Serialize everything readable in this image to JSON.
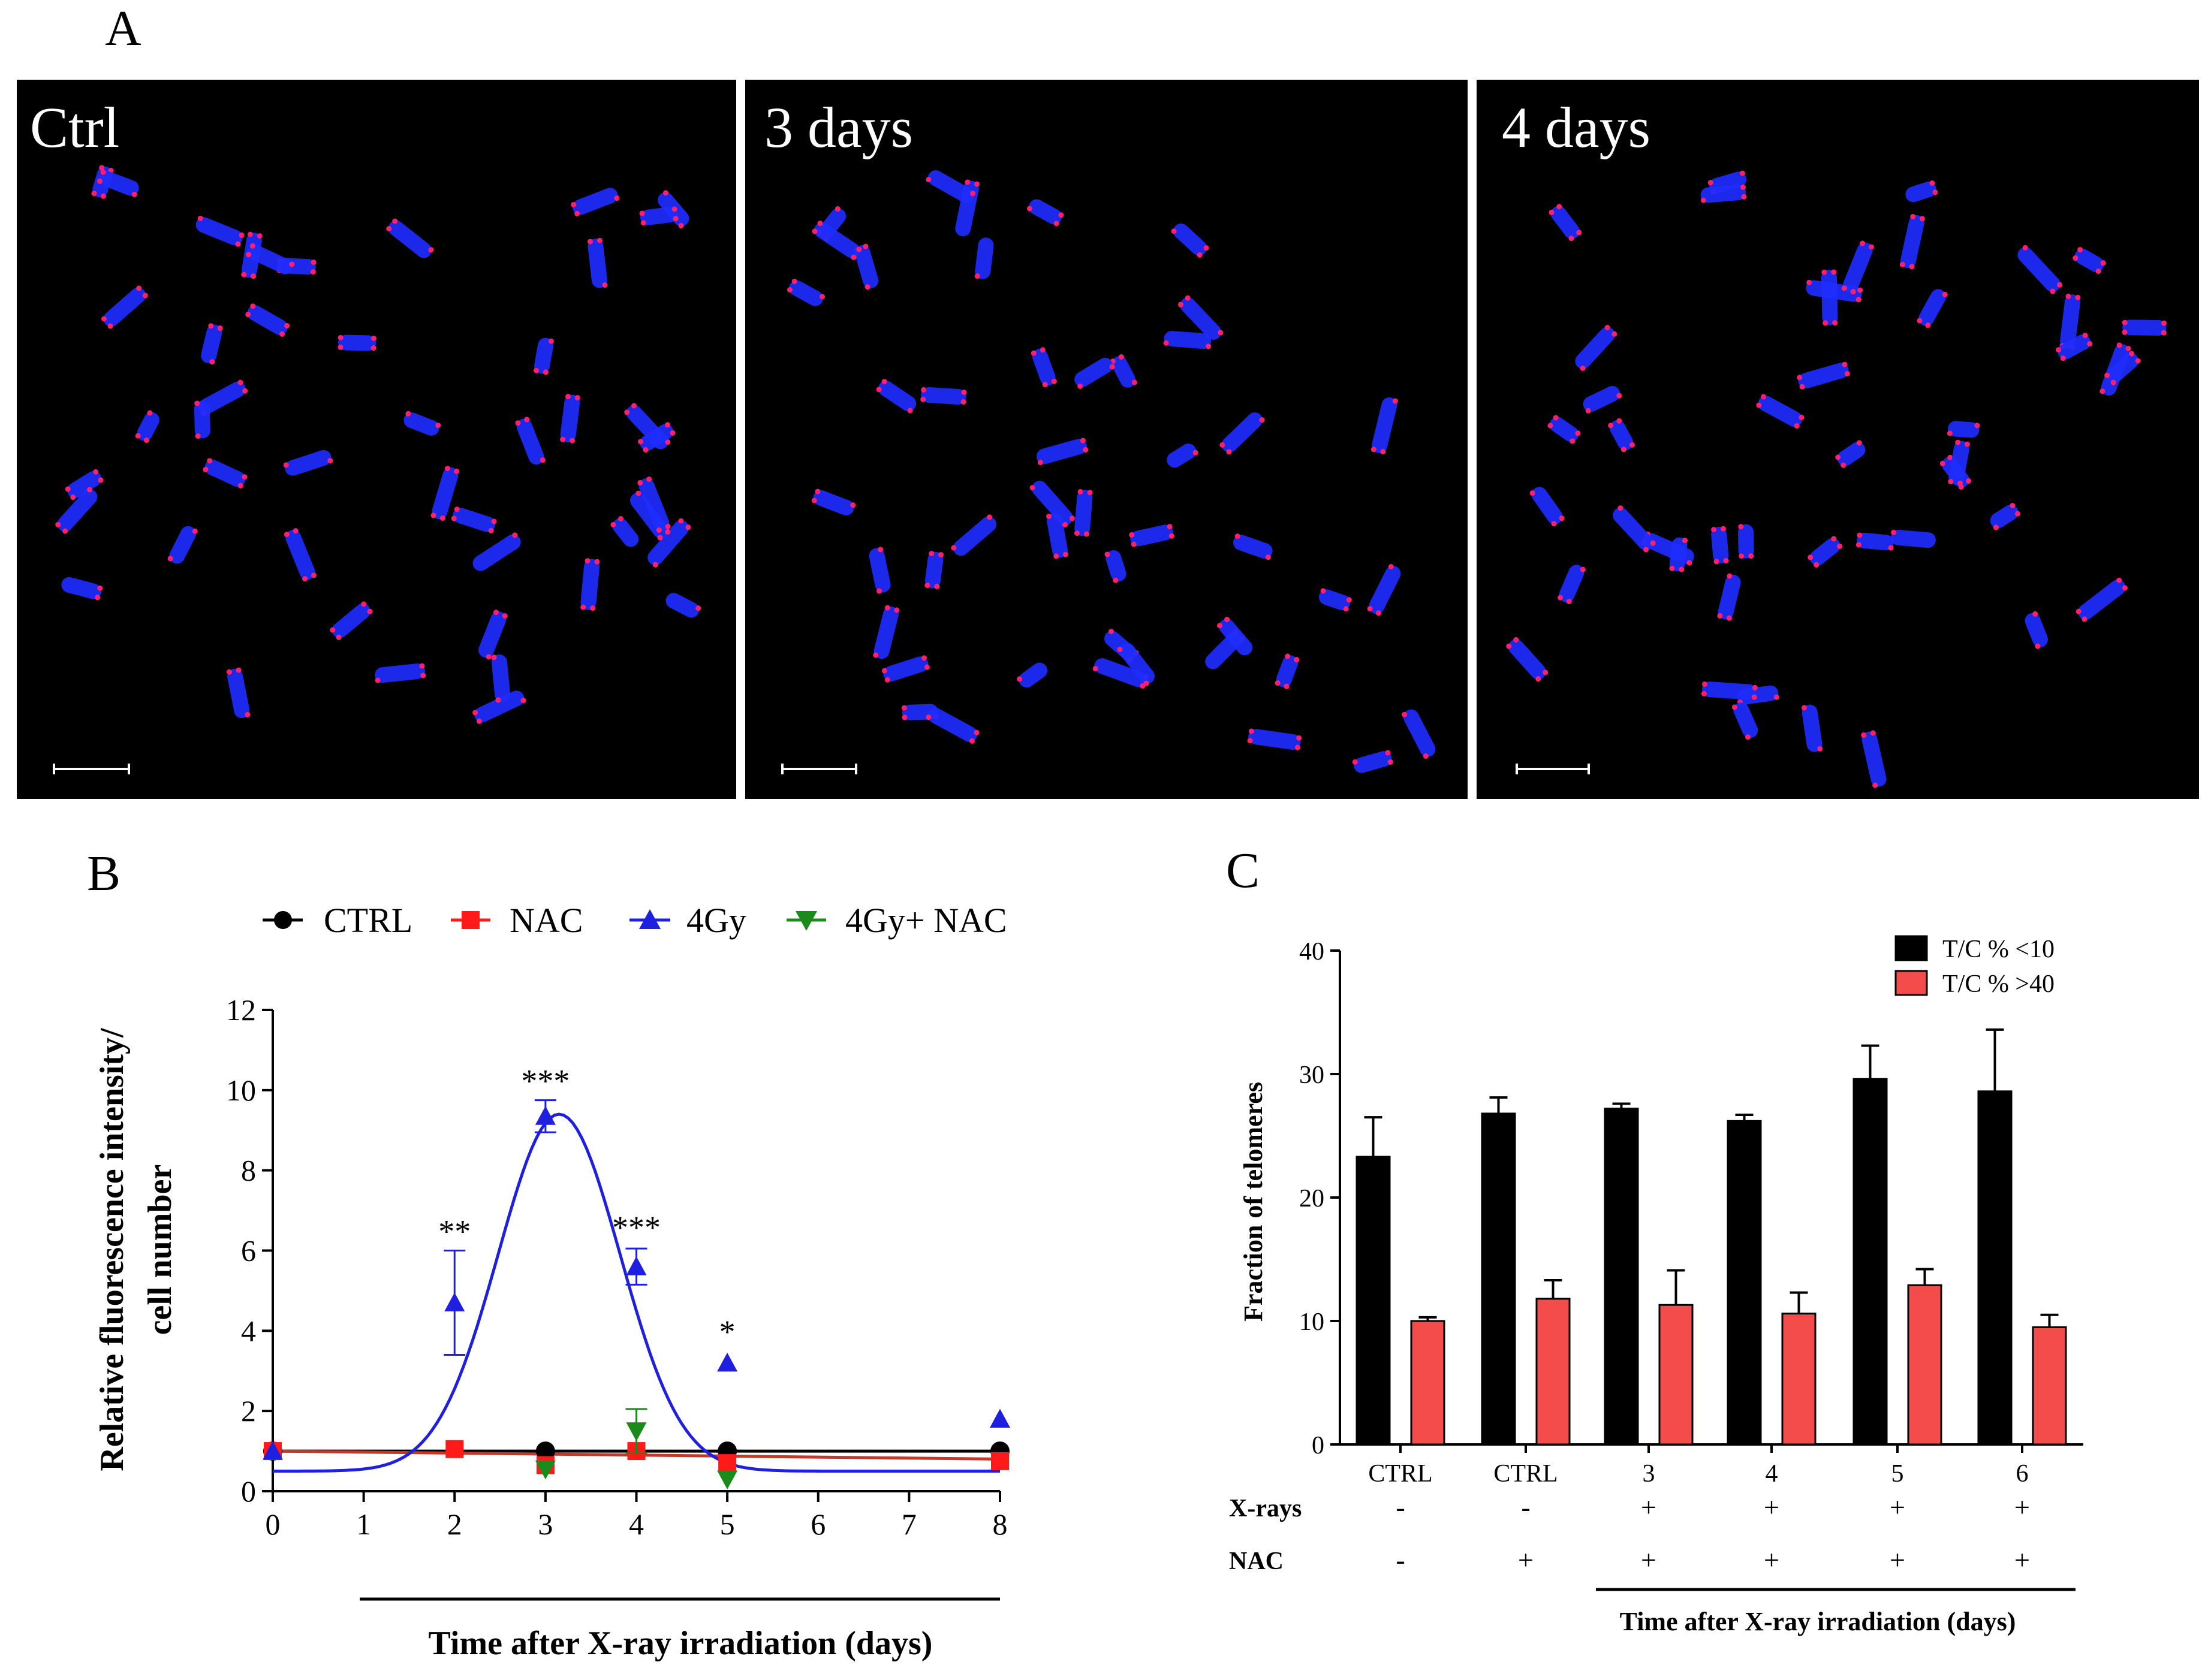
{
  "figure": {
    "panel_a": "A",
    "panel_b": "B",
    "panel_c": "C"
  },
  "micrographs": [
    {
      "label": "Ctrl",
      "seed": 11
    },
    {
      "label": "3 days",
      "seed": 23
    },
    {
      "label": "4 days",
      "seed": 37
    }
  ],
  "colors": {
    "ctrl": "#000000",
    "nac": "#ff1a1a",
    "gy": "#1f1fe0",
    "gynac": "#1a8a1a",
    "fit_gy": "#1f1fe0",
    "fit_nac": "#c0392b",
    "bar_low": "#000000",
    "bar_high": "#f44b4b",
    "chromosome": "#1e2cff",
    "telomere": "#ff1f6e"
  },
  "chart_data": [
    {
      "type": "line",
      "panel": "B",
      "ylabel_line1": "Relative fluorescence intensity/",
      "ylabel_line2": "cell number",
      "xlabel": "Time after X-ray irradiation (days)",
      "xlim": [
        0,
        8
      ],
      "ylim": [
        0,
        12
      ],
      "xticks": [
        0,
        1,
        2,
        3,
        4,
        5,
        6,
        7,
        8
      ],
      "yticks": [
        0,
        2,
        4,
        6,
        8,
        10,
        12
      ],
      "series": [
        {
          "name": "CTRL",
          "key": "ctrl",
          "marker": "circle",
          "x": [
            0,
            3,
            5,
            8
          ],
          "y": [
            1.0,
            1.0,
            1.0,
            1.0
          ],
          "fit": [
            [
              0,
              1.0
            ],
            [
              8,
              1.0
            ]
          ]
        },
        {
          "name": "NAC",
          "key": "nac",
          "marker": "square",
          "x": [
            0,
            2,
            3,
            4,
            5,
            8
          ],
          "y": [
            1.0,
            1.05,
            0.65,
            1.0,
            0.7,
            0.75
          ],
          "fit": [
            [
              0,
              1.0
            ],
            [
              8,
              0.8
            ]
          ]
        },
        {
          "name": "4Gy",
          "key": "gy",
          "marker": "triangle-up",
          "x": [
            0,
            2,
            3,
            4,
            5,
            8
          ],
          "y": [
            1.0,
            4.7,
            9.35,
            5.6,
            3.2,
            1.8
          ],
          "err": [
            0,
            1.3,
            0.4,
            0.45,
            0,
            0
          ]
        },
        {
          "name": "4Gy+ NAC",
          "key": "gynac",
          "marker": "triangle-down",
          "x": [
            3,
            4,
            5
          ],
          "y": [
            0.55,
            1.5,
            0.3
          ],
          "err": [
            0,
            0.55,
            0
          ]
        }
      ],
      "peak_fit": {
        "baseline": 0.5,
        "amplitude": 8.9,
        "center": 3.15,
        "width": 0.95
      },
      "significance": [
        {
          "x": 2,
          "y": 6.0,
          "label": "**"
        },
        {
          "x": 3,
          "y": 9.75,
          "label": "***"
        },
        {
          "x": 4,
          "y": 6.1,
          "label": "***"
        },
        {
          "x": 5,
          "y": 3.5,
          "label": "*"
        }
      ]
    },
    {
      "type": "bar",
      "panel": "C",
      "ylabel": "Fraction of telomeres",
      "xlabel": "Time after X-ray irradiation (days)",
      "ylim": [
        0,
        40
      ],
      "yticks": [
        0,
        10,
        20,
        30,
        40
      ],
      "categories": [
        "CTRL",
        "CTRL",
        "3",
        "4",
        "5",
        "6"
      ],
      "series": [
        {
          "name": "T/C % <10",
          "key": "bar_low",
          "values": [
            23.3,
            26.8,
            27.2,
            26.2,
            29.6,
            28.6
          ],
          "err": [
            3.2,
            1.3,
            0.4,
            0.5,
            2.7,
            5.0
          ]
        },
        {
          "name": "T/C % >40",
          "key": "bar_high",
          "values": [
            10.0,
            11.8,
            11.3,
            10.6,
            12.9,
            9.5
          ],
          "err": [
            0.3,
            1.5,
            2.8,
            1.7,
            1.3,
            1.0
          ]
        }
      ],
      "rows": [
        {
          "label": "X-rays",
          "values": [
            "-",
            "-",
            "+",
            "+",
            "+",
            "+"
          ]
        },
        {
          "label": "NAC",
          "values": [
            "-",
            "+",
            "+",
            "+",
            "+",
            "+"
          ]
        }
      ]
    }
  ]
}
